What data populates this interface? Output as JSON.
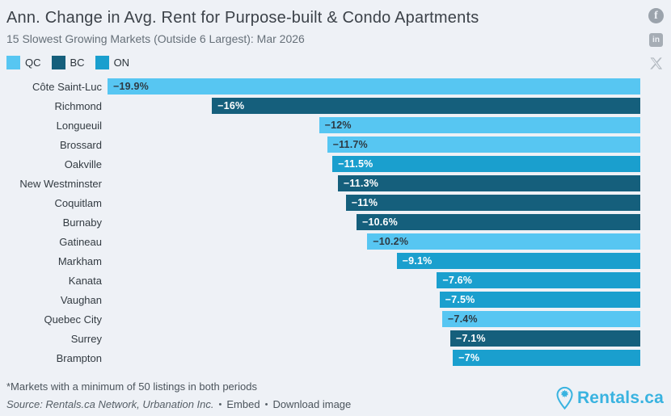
{
  "header": {
    "title": "Ann. Change in Avg. Rent for Purpose-built & Condo Apartments",
    "subtitle": "15 Slowest Growing Markets (Outside 6 Largest): Mar 2026"
  },
  "legend": [
    {
      "label": "QC",
      "color": "#57c6f2"
    },
    {
      "label": "BC",
      "color": "#155f7c"
    },
    {
      "label": "ON",
      "color": "#1a9fce"
    }
  ],
  "social": {
    "facebook_glyph": "f",
    "linkedin_glyph": "in"
  },
  "chart_data": {
    "type": "bar",
    "orientation": "horizontal",
    "title": "Ann. Change in Avg. Rent for Purpose-built & Condo Apartments",
    "subtitle": "15 Slowest Growing Markets (Outside 6 Largest): Mar 2026",
    "axis": {
      "min": -19.9,
      "max": 0,
      "unit": "%",
      "zero_edge": "right",
      "gridlines": false
    },
    "axis_max_abs": 19.9,
    "colors_by_group": {
      "QC": "#57c6f2",
      "BC": "#155f7c",
      "ON": "#1a9fce"
    },
    "value_text_colors": {
      "QC": "#2e3a43",
      "BC": "#ffffff",
      "ON": "#ffffff"
    },
    "rows": [
      {
        "city": "Côte Saint-Luc",
        "province": "QC",
        "value": -19.9,
        "label": "−19.9%"
      },
      {
        "city": "Richmond",
        "province": "BC",
        "value": -16,
        "label": "−16%"
      },
      {
        "city": "Longueuil",
        "province": "QC",
        "value": -12,
        "label": "−12%"
      },
      {
        "city": "Brossard",
        "province": "QC",
        "value": -11.7,
        "label": "−11.7%"
      },
      {
        "city": "Oakville",
        "province": "ON",
        "value": -11.5,
        "label": "−11.5%"
      },
      {
        "city": "New Westminster",
        "province": "BC",
        "value": -11.3,
        "label": "−11.3%"
      },
      {
        "city": "Coquitlam",
        "province": "BC",
        "value": -11,
        "label": "−11%"
      },
      {
        "city": "Burnaby",
        "province": "BC",
        "value": -10.6,
        "label": "−10.6%"
      },
      {
        "city": "Gatineau",
        "province": "QC",
        "value": -10.2,
        "label": "−10.2%"
      },
      {
        "city": "Markham",
        "province": "ON",
        "value": -9.1,
        "label": "−9.1%"
      },
      {
        "city": "Kanata",
        "province": "ON",
        "value": -7.6,
        "label": "−7.6%"
      },
      {
        "city": "Vaughan",
        "province": "ON",
        "value": -7.5,
        "label": "−7.5%"
      },
      {
        "city": "Quebec City",
        "province": "QC",
        "value": -7.4,
        "label": "−7.4%"
      },
      {
        "city": "Surrey",
        "province": "BC",
        "value": -7.1,
        "label": "−7.1%"
      },
      {
        "city": "Brampton",
        "province": "ON",
        "value": -7,
        "label": "−7%"
      }
    ]
  },
  "footer": {
    "note": "*Markets with a minimum of 50 listings in both periods",
    "source": "Source: Rentals.ca Network, Urbanation Inc.",
    "bullet": "•",
    "embed_label": "Embed",
    "download_label": "Download image"
  },
  "branding": {
    "logo_text": "Rentals.ca",
    "brand_color": "#39b3e0"
  }
}
